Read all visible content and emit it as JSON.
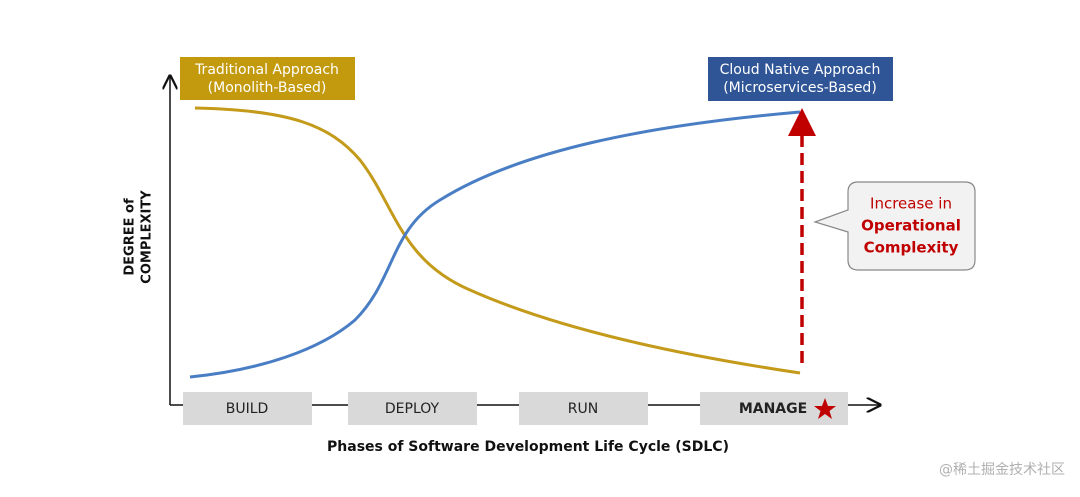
{
  "traditional": {
    "lines": [
      "Traditional Approach",
      "(Monolith-Based)"
    ]
  },
  "cloud_native": {
    "lines": [
      "Cloud Native Approach",
      "(Microservices-Based)"
    ]
  },
  "y_axis_label": {
    "lines": [
      "DEGREE of",
      "COMPLEXITY"
    ]
  },
  "phases": [
    "BUILD",
    "DEPLOY",
    "RUN",
    "MANAGE"
  ],
  "x_axis_label": "Phases of Software Development Life Cycle (SDLC)",
  "callout": {
    "lines": [
      "Increase in",
      "Operational",
      "Complexity"
    ]
  },
  "watermark": "@稀土掘金技术社区"
}
